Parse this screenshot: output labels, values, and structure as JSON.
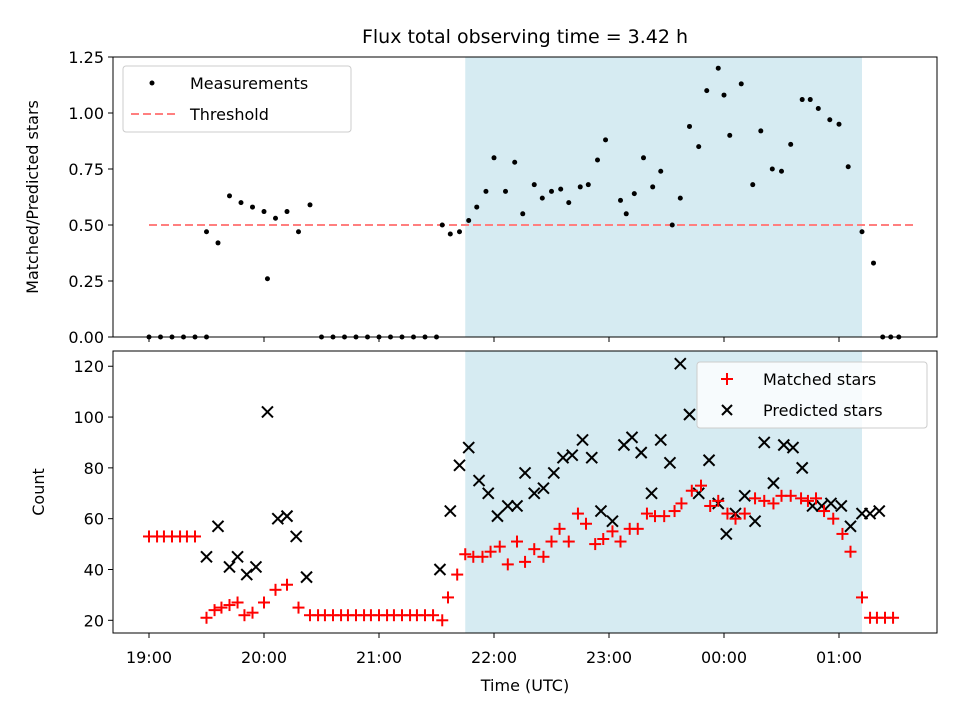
{
  "chart_data": [
    {
      "type": "scatter",
      "title": "Flux total observing time = 3.42 h",
      "xlabel": "",
      "ylabel": "Matched/Predicted stars",
      "ylim": [
        0,
        1.25
      ],
      "yticks": [
        "0.00",
        "0.25",
        "0.50",
        "0.75",
        "1.00",
        "1.25"
      ],
      "grid": false,
      "legend_position": "top-left",
      "shaded_region_hours": [
        21.75,
        25.2
      ],
      "shade_color": "#add8e6",
      "series": [
        {
          "name": "Measurements",
          "marker": "dot",
          "color": "#000000",
          "x": [
            19.0,
            19.1,
            19.2,
            19.3,
            19.4,
            19.5,
            19.5,
            19.6,
            19.7,
            19.8,
            19.9,
            20.0,
            20.03,
            20.1,
            20.2,
            20.3,
            20.4,
            20.5,
            20.6,
            20.7,
            20.8,
            20.9,
            21.0,
            21.1,
            21.2,
            21.3,
            21.4,
            21.5,
            21.55,
            21.62,
            21.7,
            21.78,
            21.85,
            21.93,
            22.0,
            22.1,
            22.18,
            22.25,
            22.35,
            22.42,
            22.5,
            22.58,
            22.65,
            22.75,
            22.82,
            22.9,
            22.97,
            23.1,
            23.15,
            23.22,
            23.3,
            23.38,
            23.45,
            23.55,
            23.62,
            23.7,
            23.78,
            23.85,
            23.95,
            24.0,
            24.05,
            24.15,
            24.25,
            24.32,
            24.42,
            24.5,
            24.58,
            24.68,
            24.75,
            24.82,
            24.92,
            25.0,
            25.08,
            25.2,
            25.3,
            25.38,
            25.45,
            25.52
          ],
          "y": [
            0,
            0,
            0,
            0,
            0,
            0,
            0.47,
            0.42,
            0.63,
            0.6,
            0.58,
            0.56,
            0.26,
            0.53,
            0.56,
            0.47,
            0.59,
            0,
            0,
            0,
            0,
            0,
            0,
            0,
            0,
            0,
            0,
            0,
            0.5,
            0.46,
            0.47,
            0.52,
            0.58,
            0.65,
            0.8,
            0.65,
            0.78,
            0.55,
            0.68,
            0.62,
            0.65,
            0.66,
            0.6,
            0.67,
            0.68,
            0.79,
            0.88,
            0.61,
            0.55,
            0.64,
            0.8,
            0.67,
            0.74,
            0.5,
            0.62,
            0.94,
            0.85,
            1.1,
            1.2,
            1.08,
            0.9,
            1.13,
            0.68,
            0.92,
            0.75,
            0.74,
            0.86,
            1.06,
            1.06,
            1.02,
            0.97,
            0.95,
            0.76,
            0.47,
            0.33,
            0,
            0,
            0
          ]
        },
        {
          "name": "Threshold",
          "style": "dashed",
          "color": "#ff7f7f",
          "x": [
            19.0,
            25.65
          ],
          "y": [
            0.5,
            0.5
          ]
        }
      ]
    },
    {
      "type": "scatter",
      "title": "",
      "xlabel": "Time (UTC)",
      "ylabel": "Count",
      "ylim": [
        15,
        126
      ],
      "yticks": [
        "20",
        "40",
        "60",
        "80",
        "100",
        "120"
      ],
      "xticks": [
        "19:00",
        "20:00",
        "21:00",
        "22:00",
        "23:00",
        "00:00",
        "01:00"
      ],
      "xtick_hours": [
        19,
        20,
        21,
        22,
        23,
        24,
        25
      ],
      "grid": false,
      "legend_position": "top-right",
      "shaded_region_hours": [
        21.75,
        25.2
      ],
      "shade_color": "#add8e6",
      "series": [
        {
          "name": "Matched stars",
          "marker": "plus",
          "color": "#ff0000",
          "x": [
            19.0,
            19.07,
            19.13,
            19.2,
            19.27,
            19.33,
            19.4,
            19.5,
            19.57,
            19.63,
            19.7,
            19.77,
            19.83,
            19.9,
            20.0,
            20.1,
            20.2,
            20.3,
            20.4,
            20.47,
            20.53,
            20.6,
            20.67,
            20.73,
            20.8,
            20.87,
            20.93,
            21.0,
            21.07,
            21.13,
            21.2,
            21.27,
            21.33,
            21.4,
            21.47,
            21.55,
            21.6,
            21.68,
            21.75,
            21.82,
            21.9,
            21.97,
            22.05,
            22.12,
            22.2,
            22.27,
            22.35,
            22.43,
            22.5,
            22.57,
            22.65,
            22.73,
            22.8,
            22.88,
            22.95,
            23.03,
            23.1,
            23.18,
            23.25,
            23.33,
            23.4,
            23.48,
            23.57,
            23.63,
            23.72,
            23.8,
            23.88,
            23.95,
            24.03,
            24.1,
            24.18,
            24.27,
            24.35,
            24.43,
            24.5,
            24.58,
            24.67,
            24.73,
            24.8,
            24.87,
            24.95,
            25.03,
            25.1,
            25.2,
            25.27,
            25.33,
            25.4,
            25.47
          ],
          "y": [
            53,
            53,
            53,
            53,
            53,
            53,
            53,
            21,
            24,
            25,
            26,
            27,
            22,
            23,
            27,
            32,
            34,
            25,
            22,
            22,
            22,
            22,
            22,
            22,
            22,
            22,
            22,
            22,
            22,
            22,
            22,
            22,
            22,
            22,
            22,
            20,
            29,
            38,
            46,
            45,
            45,
            47,
            49,
            42,
            51,
            43,
            48,
            45,
            51,
            56,
            51,
            62,
            58,
            50,
            52,
            55,
            51,
            56,
            56,
            62,
            61,
            61,
            63,
            66,
            71,
            73,
            65,
            67,
            62,
            60,
            62,
            68,
            67,
            66,
            69,
            69,
            68,
            67,
            68,
            63,
            60,
            54,
            47,
            29,
            21,
            21,
            21,
            21
          ]
        },
        {
          "name": "Predicted stars",
          "marker": "x",
          "color": "#000000",
          "x": [
            19.5,
            19.6,
            19.7,
            19.77,
            19.85,
            19.93,
            20.03,
            20.12,
            20.2,
            20.28,
            20.37,
            21.53,
            21.62,
            21.7,
            21.78,
            21.87,
            21.95,
            22.03,
            22.12,
            22.2,
            22.27,
            22.35,
            22.43,
            22.52,
            22.6,
            22.68,
            22.77,
            22.85,
            22.93,
            23.03,
            23.13,
            23.2,
            23.28,
            23.37,
            23.45,
            23.53,
            23.62,
            23.7,
            23.78,
            23.87,
            23.95,
            24.02,
            24.1,
            24.18,
            24.27,
            24.35,
            24.43,
            24.52,
            24.6,
            24.68,
            24.77,
            24.85,
            24.93,
            25.02,
            25.1,
            25.2,
            25.27,
            25.35
          ],
          "y": [
            45,
            57,
            41,
            45,
            38,
            41,
            102,
            60,
            61,
            53,
            37,
            40,
            63,
            81,
            88,
            75,
            70,
            61,
            65,
            65,
            78,
            70,
            72,
            78,
            84,
            85,
            91,
            84,
            63,
            59,
            89,
            92,
            86,
            70,
            91,
            82,
            121,
            101,
            70,
            83,
            66,
            54,
            62,
            69,
            59,
            90,
            74,
            89,
            88,
            80,
            65,
            65,
            66,
            65,
            57,
            62,
            62,
            63
          ]
        }
      ]
    }
  ]
}
